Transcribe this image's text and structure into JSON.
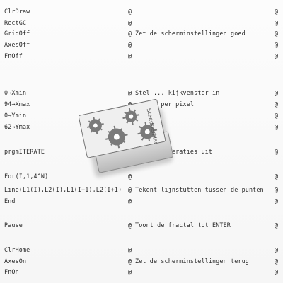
{
  "listing": [
    {
      "code": "ClrDraw",
      "marker": "@",
      "comment": "",
      "marker2": "@"
    },
    {
      "code": "RectGC",
      "marker": "@",
      "comment": "",
      "marker2": "@"
    },
    {
      "code": "GridOff",
      "marker": "@",
      "comment": "Zet de scherminstellingen goed",
      "marker2": "@"
    },
    {
      "code": "AxesOff",
      "marker": "@",
      "comment": "",
      "marker2": "@"
    },
    {
      "code": "FnOff",
      "marker": "@",
      "comment": "",
      "marker2": "@"
    },
    {
      "code": "0→Xmin",
      "marker": "@",
      "comment": "Stel ... kijkvenster in",
      "marker2": "@"
    },
    {
      "code": "94→Xmax",
      "marker": "@",
      "comment": "...eid per pixel",
      "marker2": "@"
    },
    {
      "code": "0→Ymin",
      "marker": "@",
      "comment": "",
      "marker2": "@"
    },
    {
      "code": "62→Ymax",
      "marker": "@",
      "comment": "",
      "marker2": "@"
    },
    {
      "code": "prgmITERATE",
      "marker": "@",
      "comment": "Voer de iteraties uit",
      "marker2": "@"
    },
    {
      "code": "For(I,1,4^N)",
      "marker": "@",
      "comment": "",
      "marker2": "@"
    },
    {
      "code": "Line(L1(I),L2(I),L1(I+1),L2(I+1)",
      "marker": "@",
      "comment": "Tekent lijnstutten tussen de punten",
      "marker2": "@"
    },
    {
      "code": "End",
      "marker": "@",
      "comment": "",
      "marker2": "@"
    },
    {
      "code": "Pause",
      "marker": "@",
      "comment": "Toont de fractal tot ENTER",
      "marker2": "@"
    },
    {
      "code": "ClrHome",
      "marker": "@",
      "comment": "",
      "marker2": "@"
    },
    {
      "code": "AxesOn",
      "marker": "@",
      "comment": "Zet de scherminstellingen terug",
      "marker2": "@"
    },
    {
      "code": "FnOn",
      "marker": "@",
      "comment": "",
      "marker2": "@"
    }
  ],
  "eraser": {
    "brand": "StaedtlerMars",
    "icon": "eraser-icon"
  }
}
